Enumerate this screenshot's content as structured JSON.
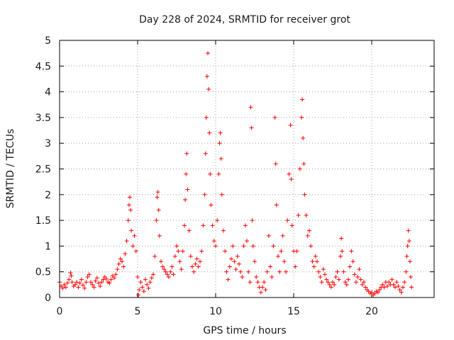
{
  "chart_data": {
    "type": "scatter",
    "title": "Day 228 of 2024, SRMTID for receiver grot",
    "xlabel": "GPS time / hours",
    "ylabel": "SRMTID / TECUs",
    "xlim": [
      0,
      24
    ],
    "ylim": [
      0,
      5
    ],
    "xticks": [
      0,
      5,
      10,
      15,
      20
    ],
    "xtick_labels": [
      "0",
      "5",
      "10",
      "15",
      "20"
    ],
    "yticks": [
      0,
      0.5,
      1,
      1.5,
      2,
      2.5,
      3,
      3.5,
      4,
      4.5,
      5
    ],
    "ytick_labels": [
      "0",
      "0.5",
      "1",
      "1.5",
      "2",
      "2.5",
      "3",
      "3.5",
      "4",
      "4.5",
      "5"
    ],
    "grid": true,
    "marker": "+",
    "color": "#ff0000",
    "series": [
      {
        "name": "SRMTID",
        "points": [
          [
            0.0,
            0.3
          ],
          [
            0.1,
            0.22
          ],
          [
            0.2,
            0.18
          ],
          [
            0.3,
            0.25
          ],
          [
            0.4,
            0.2
          ],
          [
            0.5,
            0.28
          ],
          [
            0.6,
            0.35
          ],
          [
            0.7,
            0.48
          ],
          [
            0.75,
            0.42
          ],
          [
            0.8,
            0.3
          ],
          [
            0.9,
            0.22
          ],
          [
            1.0,
            0.25
          ],
          [
            1.1,
            0.3
          ],
          [
            1.2,
            0.2
          ],
          [
            1.3,
            0.28
          ],
          [
            1.4,
            0.35
          ],
          [
            1.5,
            0.24
          ],
          [
            1.6,
            0.18
          ],
          [
            1.7,
            0.3
          ],
          [
            1.8,
            0.4
          ],
          [
            1.9,
            0.45
          ],
          [
            2.0,
            0.3
          ],
          [
            2.1,
            0.25
          ],
          [
            2.2,
            0.2
          ],
          [
            2.3,
            0.32
          ],
          [
            2.4,
            0.38
          ],
          [
            2.5,
            0.28
          ],
          [
            2.6,
            0.22
          ],
          [
            2.7,
            0.3
          ],
          [
            2.8,
            0.35
          ],
          [
            2.9,
            0.4
          ],
          [
            3.0,
            0.36
          ],
          [
            3.1,
            0.3
          ],
          [
            3.2,
            0.28
          ],
          [
            3.3,
            0.35
          ],
          [
            3.4,
            0.42
          ],
          [
            3.5,
            0.38
          ],
          [
            3.6,
            0.45
          ],
          [
            3.7,
            0.55
          ],
          [
            3.8,
            0.65
          ],
          [
            3.9,
            0.75
          ],
          [
            4.0,
            0.7
          ],
          [
            4.1,
            0.6
          ],
          [
            4.2,
            0.85
          ],
          [
            4.3,
            1.1
          ],
          [
            4.4,
            1.5
          ],
          [
            4.45,
            1.8
          ],
          [
            4.5,
            1.95
          ],
          [
            4.55,
            1.7
          ],
          [
            4.6,
            1.3
          ],
          [
            4.7,
            1.0
          ],
          [
            4.8,
            1.2
          ],
          [
            4.9,
            0.9
          ],
          [
            5.0,
            0.4
          ],
          [
            5.05,
            0.05
          ],
          [
            5.1,
            0.15
          ],
          [
            5.2,
            0.3
          ],
          [
            5.3,
            0.2
          ],
          [
            5.4,
            0.12
          ],
          [
            5.5,
            0.35
          ],
          [
            5.6,
            0.25
          ],
          [
            5.7,
            0.18
          ],
          [
            5.8,
            0.3
          ],
          [
            5.9,
            0.38
          ],
          [
            6.0,
            0.45
          ],
          [
            6.1,
            0.8
          ],
          [
            6.2,
            1.5
          ],
          [
            6.25,
            1.95
          ],
          [
            6.3,
            2.05
          ],
          [
            6.35,
            1.7
          ],
          [
            6.4,
            1.2
          ],
          [
            6.5,
            0.7
          ],
          [
            6.6,
            0.6
          ],
          [
            6.7,
            0.55
          ],
          [
            6.8,
            0.5
          ],
          [
            6.9,
            0.45
          ],
          [
            7.0,
            0.4
          ],
          [
            7.1,
            0.5
          ],
          [
            7.2,
            0.6
          ],
          [
            7.3,
            0.45
          ],
          [
            7.4,
            0.8
          ],
          [
            7.5,
            1.0
          ],
          [
            7.6,
            0.9
          ],
          [
            7.7,
            0.7
          ],
          [
            7.8,
            0.55
          ],
          [
            7.9,
            0.9
          ],
          [
            8.0,
            1.4
          ],
          [
            8.05,
            1.9
          ],
          [
            8.1,
            2.4
          ],
          [
            8.15,
            2.8
          ],
          [
            8.2,
            2.1
          ],
          [
            8.3,
            1.3
          ],
          [
            8.4,
            0.8
          ],
          [
            8.5,
            0.6
          ],
          [
            8.6,
            0.5
          ],
          [
            8.7,
            0.65
          ],
          [
            8.8,
            0.75
          ],
          [
            8.9,
            0.6
          ],
          [
            9.0,
            0.7
          ],
          [
            9.1,
            0.9
          ],
          [
            9.2,
            1.4
          ],
          [
            9.3,
            2.0
          ],
          [
            9.35,
            2.8
          ],
          [
            9.4,
            3.5
          ],
          [
            9.45,
            4.3
          ],
          [
            9.5,
            4.75
          ],
          [
            9.55,
            4.05
          ],
          [
            9.6,
            3.2
          ],
          [
            9.65,
            2.4
          ],
          [
            9.7,
            1.8
          ],
          [
            9.8,
            1.4
          ],
          [
            9.9,
            1.1
          ],
          [
            10.0,
            1.0
          ],
          [
            10.1,
            1.5
          ],
          [
            10.2,
            2.4
          ],
          [
            10.25,
            3.0
          ],
          [
            10.3,
            3.2
          ],
          [
            10.35,
            2.7
          ],
          [
            10.4,
            2.0
          ],
          [
            10.5,
            1.3
          ],
          [
            10.6,
            0.9
          ],
          [
            10.7,
            0.5
          ],
          [
            10.8,
            0.35
          ],
          [
            10.9,
            0.6
          ],
          [
            11.0,
            0.75
          ],
          [
            11.1,
            1.0
          ],
          [
            11.2,
            0.7
          ],
          [
            11.3,
            0.55
          ],
          [
            11.4,
            0.8
          ],
          [
            11.5,
            0.65
          ],
          [
            11.6,
            0.5
          ],
          [
            11.7,
            0.4
          ],
          [
            11.8,
            1.0
          ],
          [
            11.9,
            1.4
          ],
          [
            12.0,
            1.1
          ],
          [
            12.1,
            0.5
          ],
          [
            12.2,
            0.3
          ],
          [
            12.25,
            3.7
          ],
          [
            12.3,
            3.3
          ],
          [
            12.35,
            1.5
          ],
          [
            12.4,
            1.0
          ],
          [
            12.5,
            0.7
          ],
          [
            12.6,
            0.4
          ],
          [
            12.7,
            0.3
          ],
          [
            12.8,
            0.2
          ],
          [
            12.9,
            0.1
          ],
          [
            13.0,
            0.2
          ],
          [
            13.1,
            0.3
          ],
          [
            13.2,
            0.15
          ],
          [
            13.3,
            0.5
          ],
          [
            13.4,
            1.2
          ],
          [
            13.5,
            0.6
          ],
          [
            13.6,
            0.4
          ],
          [
            13.7,
            1.0
          ],
          [
            13.8,
            3.5
          ],
          [
            13.85,
            2.6
          ],
          [
            13.9,
            1.8
          ],
          [
            14.0,
            0.8
          ],
          [
            14.1,
            0.5
          ],
          [
            14.2,
            0.9
          ],
          [
            14.3,
            1.2
          ],
          [
            14.4,
            0.7
          ],
          [
            14.5,
            0.5
          ],
          [
            14.6,
            1.5
          ],
          [
            14.7,
            2.4
          ],
          [
            14.8,
            3.35
          ],
          [
            14.85,
            2.3
          ],
          [
            14.9,
            1.4
          ],
          [
            15.0,
            0.9
          ],
          [
            15.1,
            0.6
          ],
          [
            15.2,
            0.9
          ],
          [
            15.3,
            1.6
          ],
          [
            15.4,
            2.5
          ],
          [
            15.5,
            3.5
          ],
          [
            15.55,
            3.85
          ],
          [
            15.6,
            3.1
          ],
          [
            15.65,
            2.6
          ],
          [
            15.7,
            2.0
          ],
          [
            15.8,
            1.6
          ],
          [
            15.9,
            1.2
          ],
          [
            16.0,
            1.3
          ],
          [
            16.1,
            1.0
          ],
          [
            16.2,
            0.7
          ],
          [
            16.3,
            0.6
          ],
          [
            16.4,
            0.8
          ],
          [
            16.5,
            0.7
          ],
          [
            16.6,
            0.5
          ],
          [
            16.7,
            0.4
          ],
          [
            16.8,
            0.3
          ],
          [
            16.9,
            0.55
          ],
          [
            17.0,
            0.45
          ],
          [
            17.1,
            0.35
          ],
          [
            17.2,
            0.3
          ],
          [
            17.3,
            0.25
          ],
          [
            17.4,
            0.2
          ],
          [
            17.5,
            0.3
          ],
          [
            17.6,
            0.25
          ],
          [
            17.7,
            0.4
          ],
          [
            17.8,
            0.5
          ],
          [
            17.9,
            0.35
          ],
          [
            18.0,
            0.8
          ],
          [
            18.05,
            1.15
          ],
          [
            18.1,
            0.9
          ],
          [
            18.2,
            0.5
          ],
          [
            18.3,
            0.3
          ],
          [
            18.4,
            0.25
          ],
          [
            18.5,
            0.35
          ],
          [
            18.6,
            0.6
          ],
          [
            18.7,
            0.9
          ],
          [
            18.8,
            0.7
          ],
          [
            18.9,
            0.45
          ],
          [
            19.0,
            0.3
          ],
          [
            19.1,
            0.4
          ],
          [
            19.2,
            0.55
          ],
          [
            19.3,
            0.35
          ],
          [
            19.4,
            0.25
          ],
          [
            19.5,
            0.3
          ],
          [
            19.6,
            0.2
          ],
          [
            19.7,
            0.15
          ],
          [
            19.8,
            0.12
          ],
          [
            19.9,
            0.08
          ],
          [
            20.0,
            0.1
          ],
          [
            20.1,
            0.05
          ],
          [
            20.2,
            0.08
          ],
          [
            20.3,
            0.12
          ],
          [
            20.4,
            0.1
          ],
          [
            20.5,
            0.15
          ],
          [
            20.6,
            0.2
          ],
          [
            20.7,
            0.25
          ],
          [
            20.8,
            0.2
          ],
          [
            20.9,
            0.3
          ],
          [
            21.0,
            0.22
          ],
          [
            21.1,
            0.3
          ],
          [
            21.2,
            0.25
          ],
          [
            21.3,
            0.35
          ],
          [
            21.4,
            0.25
          ],
          [
            21.5,
            0.2
          ],
          [
            21.6,
            0.3
          ],
          [
            21.7,
            0.22
          ],
          [
            21.8,
            0.15
          ],
          [
            21.9,
            0.1
          ],
          [
            22.0,
            0.2
          ],
          [
            22.1,
            0.3
          ],
          [
            22.2,
            0.5
          ],
          [
            22.25,
            0.8
          ],
          [
            22.3,
            1.0
          ],
          [
            22.35,
            1.3
          ],
          [
            22.4,
            1.1
          ],
          [
            22.45,
            0.7
          ],
          [
            22.5,
            0.4
          ],
          [
            22.55,
            0.2
          ]
        ]
      }
    ]
  }
}
